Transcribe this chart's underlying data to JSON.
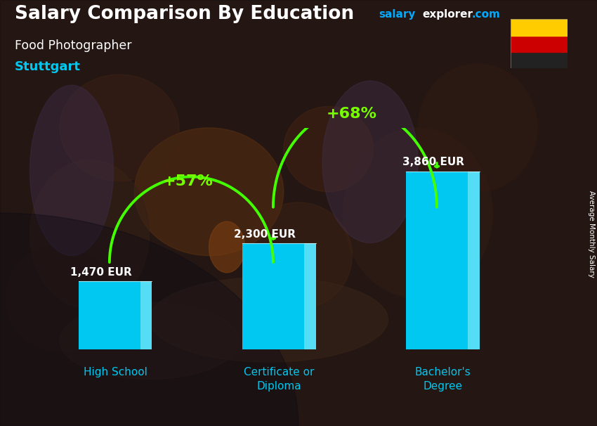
{
  "title": "Salary Comparison By Education",
  "subtitle": "Food Photographer",
  "location": "Stuttgart",
  "categories": [
    "High School",
    "Certificate or\nDiploma",
    "Bachelor's\nDegree"
  ],
  "values": [
    1470,
    2300,
    3860
  ],
  "bar_color_main": "#00c8f0",
  "bar_color_light": "#55ddf5",
  "bar_color_right": "#40d8f8",
  "bar_color_top": "#80eaff",
  "value_labels": [
    "1,470 EUR",
    "2,300 EUR",
    "3,860 EUR"
  ],
  "pct_labels": [
    "+57%",
    "+68%"
  ],
  "title_color": "#ffffff",
  "subtitle_color": "#ffffff",
  "location_color": "#00c8f0",
  "value_label_color": "#ffffff",
  "pct_color": "#77ff00",
  "arrow_color": "#44ff00",
  "xlabel_color": "#00c8f0",
  "website_salary_color": "#00aaff",
  "website_explorer_color": "#ffffff",
  "axis_label_right": "Average Monthly Salary",
  "ylim": [
    0,
    4800
  ],
  "bg_warm": [
    0.22,
    0.14,
    0.08
  ],
  "flag_colors": [
    "#222222",
    "#cc0000",
    "#ffcc00"
  ]
}
